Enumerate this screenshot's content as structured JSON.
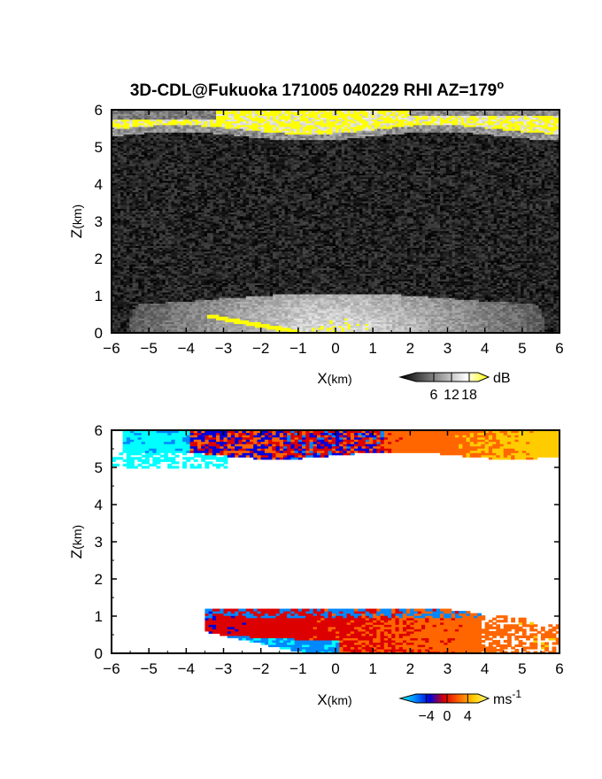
{
  "title": "3D-CDL@Fukuoka 171005 040229 RHI AZ=179",
  "title_superscript": "o",
  "chart_data": [
    {
      "type": "heatmap",
      "quantity": "reflectivity",
      "xlabel": "X",
      "xunit": "(km)",
      "ylabel": "Z",
      "yunit": "(km)",
      "xlim": [
        -6,
        6
      ],
      "ylim": [
        0,
        6
      ],
      "xticks": [
        -6,
        -5,
        -4,
        -3,
        -2,
        -1,
        0,
        1,
        2,
        3,
        4,
        5,
        6
      ],
      "yticks": [
        0,
        1,
        2,
        3,
        4,
        5,
        6
      ],
      "colorbar": {
        "unit": "dB",
        "ticks": [
          6,
          12,
          18
        ],
        "range": [
          0,
          21
        ],
        "colors": [
          "#000000",
          "#555555",
          "#aaaaaa",
          "#ffffff",
          "#ffff00"
        ]
      },
      "features": {
        "upper_layer": {
          "z_range": [
            5.3,
            6.0
          ],
          "max_value": "saturated",
          "color": "#ffff00"
        },
        "lower_layer_top_km": 1.0,
        "background": "noise"
      }
    },
    {
      "type": "heatmap",
      "quantity": "Doppler velocity",
      "xlabel": "X",
      "xunit": "(km)",
      "ylabel": "Z",
      "yunit": "(km)",
      "xlim": [
        -6,
        6
      ],
      "ylim": [
        0,
        6
      ],
      "xticks": [
        -6,
        -5,
        -4,
        -3,
        -2,
        -1,
        0,
        1,
        2,
        3,
        4,
        5,
        6
      ],
      "yticks": [
        0,
        1,
        2,
        3,
        4,
        5,
        6
      ],
      "colorbar": {
        "unit": "ms",
        "unit_superscript": "-1",
        "ticks": [
          "−4",
          "0",
          "4"
        ],
        "tick_values": [
          -4,
          0,
          4
        ],
        "range": [
          -6,
          6
        ],
        "colors": [
          "#00ffff",
          "#0088ff",
          "#0000dd",
          "#dd0000",
          "#ff6600",
          "#ffcc00",
          "#ffff88"
        ]
      },
      "features": {
        "upper_layer": {
          "z_range": [
            5.0,
            6.0
          ],
          "left": "negative",
          "right": "positive"
        },
        "lower_layer": {
          "z_range": [
            0.0,
            1.2
          ],
          "left_near_ground": "negative",
          "right": "positive"
        }
      }
    }
  ]
}
